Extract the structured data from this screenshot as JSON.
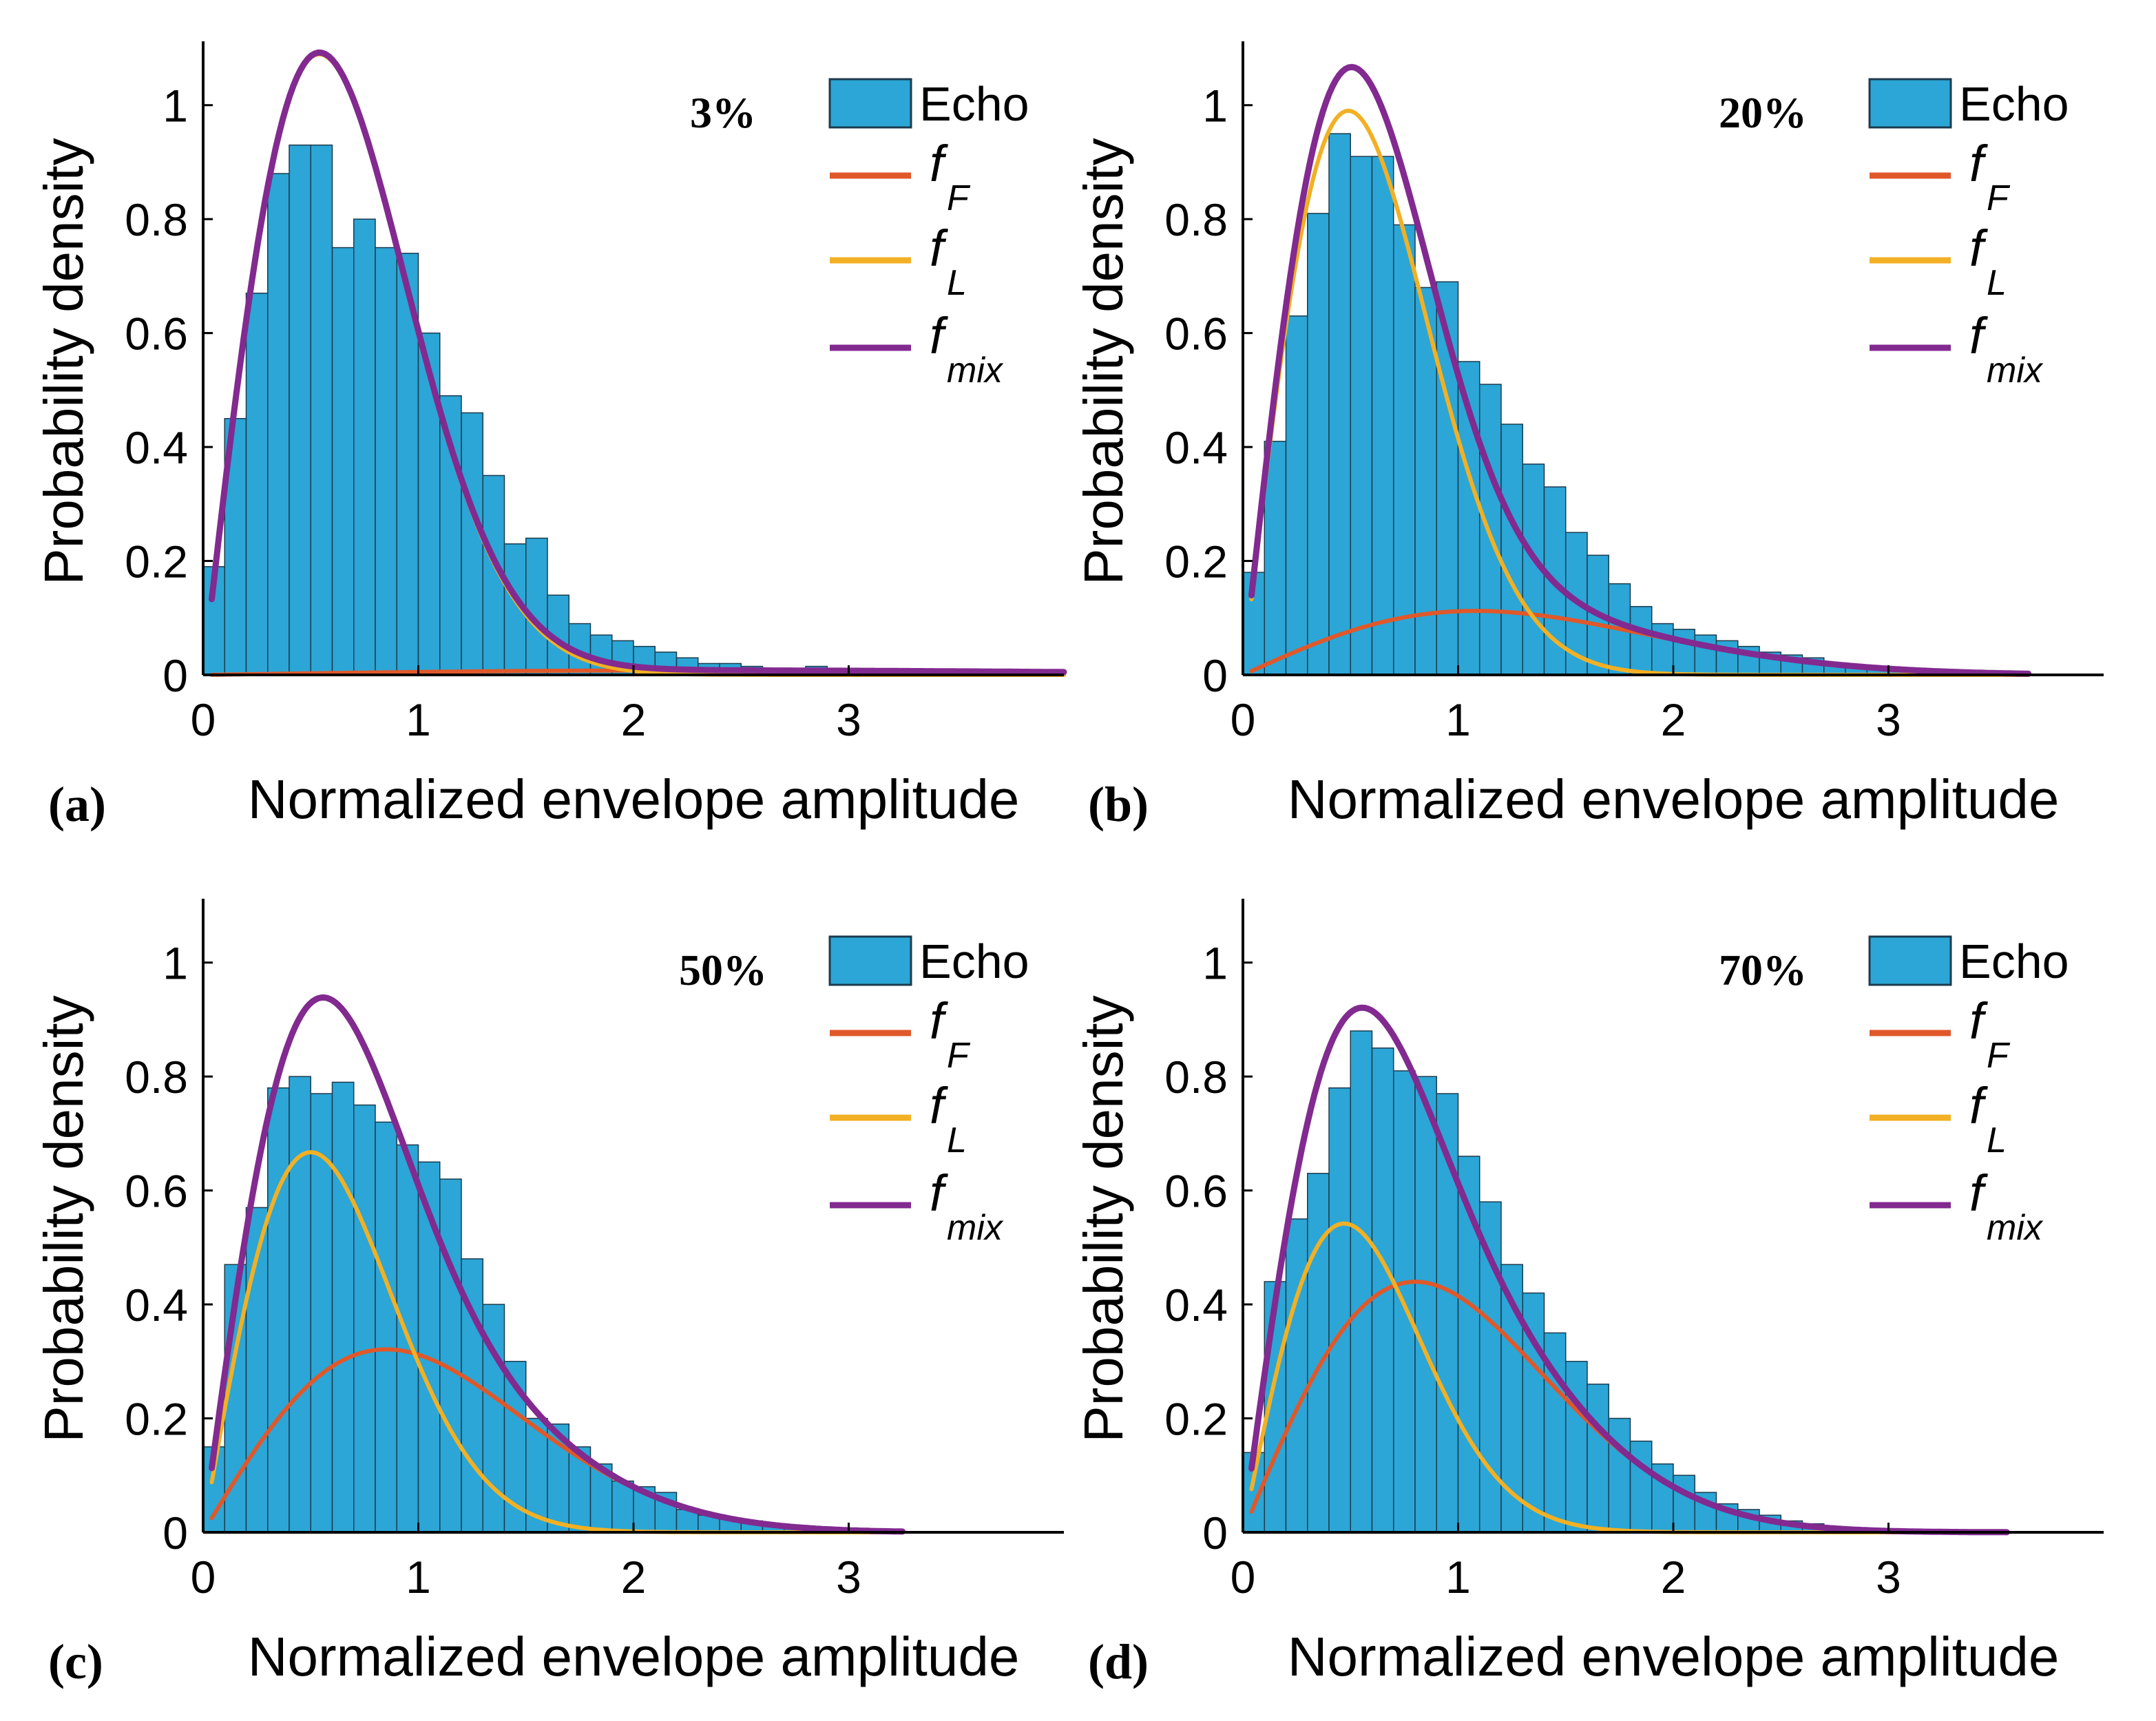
{
  "figure": {
    "background": "#ffffff"
  },
  "colors": {
    "bar_fill": "#2ba6d6",
    "bar_edge": "#1c3b4e",
    "fF": "#e0582a",
    "fL": "#f2b024",
    "fmix": "#822a90",
    "axis": "#000000"
  },
  "chart_data": [
    {
      "id": "a",
      "type": "bar+line",
      "panel_label": "(a)",
      "annotation": "3%",
      "xlabel": "Normalized   envelope   amplitude",
      "ylabel": "Probability  density",
      "xlim": [
        0,
        4.0
      ],
      "ylim": [
        0,
        1.1
      ],
      "xticks": [
        0,
        1,
        2,
        3
      ],
      "xtick_labels": [
        "0",
        "1",
        "2",
        "3"
      ],
      "yticks": [
        0,
        0.2,
        0.4,
        0.6,
        0.8,
        1
      ],
      "ytick_labels": [
        "0",
        "0.2",
        "0.4",
        "0.6",
        "0.8",
        "1"
      ],
      "legend": [
        {
          "key": "echo",
          "main": "Echo",
          "sub": ""
        },
        {
          "key": "fF",
          "main": "f",
          "sub": "F"
        },
        {
          "key": "fL",
          "main": "f",
          "sub": "L"
        },
        {
          "key": "fmix",
          "main": "f",
          "sub": "mix"
        }
      ],
      "histogram": {
        "name": "Echo",
        "bin_start": 0.0,
        "bin_width": 0.1,
        "values": [
          0.19,
          0.45,
          0.67,
          0.88,
          0.93,
          0.93,
          0.75,
          0.8,
          0.75,
          0.74,
          0.6,
          0.49,
          0.46,
          0.35,
          0.23,
          0.24,
          0.14,
          0.09,
          0.07,
          0.06,
          0.05,
          0.04,
          0.03,
          0.02,
          0.02,
          0.015,
          0.01,
          0.01,
          0.015,
          0.01,
          0.01,
          0.005,
          0.005,
          0.005,
          0.005,
          0.003,
          0.003,
          0.002,
          0.002,
          0.001
        ]
      },
      "curves": [
        {
          "key": "fF",
          "name": "f_F",
          "type": "rayleigh",
          "weight": 0.03,
          "scale": 2.3,
          "x_start": 0.04,
          "x_end": 4.0
        },
        {
          "key": "fL",
          "name": "f_L",
          "type": "rayleigh",
          "weight": 0.97,
          "scale": 0.54,
          "x_start": 0.04,
          "x_end": 4.0
        },
        {
          "key": "fmix",
          "name": "f_mix",
          "type": "mix",
          "x_start": 0.04,
          "x_end": 4.0
        }
      ]
    },
    {
      "id": "b",
      "type": "bar+line",
      "panel_label": "(b)",
      "annotation": "20%",
      "xlabel": "Normalized   envelope   amplitude",
      "ylabel": "Probability  density",
      "xlim": [
        0,
        4.0
      ],
      "ylim": [
        0,
        1.1
      ],
      "xticks": [
        0,
        1,
        2,
        3
      ],
      "xtick_labels": [
        "0",
        "1",
        "2",
        "3"
      ],
      "yticks": [
        0,
        0.2,
        0.4,
        0.6,
        0.8,
        1
      ],
      "ytick_labels": [
        "0",
        "0.2",
        "0.4",
        "0.6",
        "0.8",
        "1"
      ],
      "legend": [
        {
          "key": "echo",
          "main": "Echo",
          "sub": ""
        },
        {
          "key": "fF",
          "main": "f",
          "sub": "F"
        },
        {
          "key": "fL",
          "main": "f",
          "sub": "L"
        },
        {
          "key": "fmix",
          "main": "f",
          "sub": "mix"
        }
      ],
      "histogram": {
        "name": "Echo",
        "bin_start": 0.0,
        "bin_width": 0.1,
        "values": [
          0.18,
          0.41,
          0.63,
          0.81,
          0.95,
          0.91,
          0.91,
          0.79,
          0.68,
          0.69,
          0.55,
          0.51,
          0.44,
          0.37,
          0.33,
          0.25,
          0.21,
          0.16,
          0.12,
          0.09,
          0.08,
          0.07,
          0.06,
          0.05,
          0.04,
          0.035,
          0.03,
          0.02,
          0.015,
          0.012,
          0.01,
          0.008,
          0.006,
          0.004,
          0.003,
          0.002,
          0.001
        ]
      },
      "curves": [
        {
          "key": "fF",
          "name": "f_F",
          "type": "rayleigh",
          "weight": 0.2,
          "scale": 1.08,
          "x_start": 0.04,
          "x_end": 3.65
        },
        {
          "key": "fL",
          "name": "f_L",
          "type": "rayleigh",
          "weight": 0.8,
          "scale": 0.49,
          "x_start": 0.04,
          "x_end": 3.65
        },
        {
          "key": "fmix",
          "name": "f_mix",
          "type": "mix",
          "x_start": 0.04,
          "x_end": 3.65
        }
      ]
    },
    {
      "id": "c",
      "type": "bar+line",
      "panel_label": "(c)",
      "annotation": "50%",
      "xlabel": "Normalized   envelope   amplitude",
      "ylabel": "Probability  density",
      "xlim": [
        0,
        4.0
      ],
      "ylim": [
        0,
        1.1
      ],
      "xticks": [
        0,
        1,
        2,
        3
      ],
      "xtick_labels": [
        "0",
        "1",
        "2",
        "3"
      ],
      "yticks": [
        0,
        0.2,
        0.4,
        0.6,
        0.8,
        1
      ],
      "ytick_labels": [
        "0",
        "0.2",
        "0.4",
        "0.6",
        "0.8",
        "1"
      ],
      "legend": [
        {
          "key": "echo",
          "main": "Echo",
          "sub": ""
        },
        {
          "key": "fF",
          "main": "f",
          "sub": "F"
        },
        {
          "key": "fL",
          "main": "f",
          "sub": "L"
        },
        {
          "key": "fmix",
          "main": "f",
          "sub": "mix"
        }
      ],
      "histogram": {
        "name": "Echo",
        "bin_start": 0.0,
        "bin_width": 0.1,
        "values": [
          0.15,
          0.47,
          0.57,
          0.78,
          0.8,
          0.77,
          0.79,
          0.75,
          0.72,
          0.68,
          0.65,
          0.62,
          0.48,
          0.4,
          0.3,
          0.2,
          0.19,
          0.15,
          0.12,
          0.09,
          0.08,
          0.07,
          0.04,
          0.03,
          0.025,
          0.02,
          0.015,
          0.01,
          0.008,
          0.005,
          0.003,
          0.002
        ]
      },
      "curves": [
        {
          "key": "fF",
          "name": "f_F",
          "type": "rayleigh",
          "weight": 0.45,
          "scale": 0.85,
          "x_start": 0.04,
          "x_end": 3.25
        },
        {
          "key": "fL",
          "name": "f_L",
          "type": "rayleigh",
          "weight": 0.55,
          "scale": 0.5,
          "x_start": 0.04,
          "x_end": 3.25
        },
        {
          "key": "fmix",
          "name": "f_mix",
          "type": "mix",
          "x_start": 0.04,
          "x_end": 3.25
        }
      ]
    },
    {
      "id": "d",
      "type": "bar+line",
      "panel_label": "(d)",
      "annotation": "70%",
      "xlabel": "Normalized   envelope   amplitude",
      "ylabel": "Probability  density",
      "xlim": [
        0,
        4.0
      ],
      "ylim": [
        0,
        1.1
      ],
      "xticks": [
        0,
        1,
        2,
        3
      ],
      "xtick_labels": [
        "0",
        "1",
        "2",
        "3"
      ],
      "yticks": [
        0,
        0.2,
        0.4,
        0.6,
        0.8,
        1
      ],
      "ytick_labels": [
        "0",
        "0.2",
        "0.4",
        "0.6",
        "0.8",
        "1"
      ],
      "legend": [
        {
          "key": "echo",
          "main": "Echo",
          "sub": ""
        },
        {
          "key": "fF",
          "main": "f",
          "sub": "F"
        },
        {
          "key": "fL",
          "main": "f",
          "sub": "L"
        },
        {
          "key": "fmix",
          "main": "f",
          "sub": "mix"
        }
      ],
      "histogram": {
        "name": "Echo",
        "bin_start": 0.0,
        "bin_width": 0.1,
        "values": [
          0.14,
          0.44,
          0.55,
          0.63,
          0.78,
          0.88,
          0.85,
          0.81,
          0.8,
          0.77,
          0.66,
          0.58,
          0.47,
          0.42,
          0.35,
          0.3,
          0.26,
          0.2,
          0.16,
          0.12,
          0.1,
          0.07,
          0.05,
          0.04,
          0.03,
          0.02,
          0.015,
          0.01,
          0.008,
          0.005,
          0.003,
          0.002,
          0.001,
          0.001,
          0.0005
        ]
      },
      "curves": [
        {
          "key": "fF",
          "name": "f_F",
          "type": "rayleigh",
          "weight": 0.58,
          "scale": 0.8,
          "x_start": 0.04,
          "x_end": 3.55
        },
        {
          "key": "fL",
          "name": "f_L",
          "type": "rayleigh",
          "weight": 0.42,
          "scale": 0.47,
          "x_start": 0.04,
          "x_end": 3.55
        },
        {
          "key": "fmix",
          "name": "f_mix",
          "type": "mix",
          "x_start": 0.04,
          "x_end": 3.55
        }
      ]
    }
  ]
}
